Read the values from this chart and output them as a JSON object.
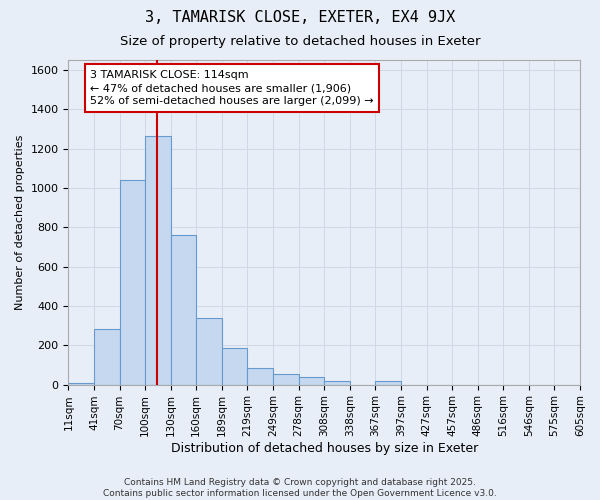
{
  "title1": "3, TAMARISK CLOSE, EXETER, EX4 9JX",
  "title2": "Size of property relative to detached houses in Exeter",
  "xlabel": "Distribution of detached houses by size in Exeter",
  "ylabel": "Number of detached properties",
  "bin_labels": [
    "11sqm",
    "41sqm",
    "70sqm",
    "100sqm",
    "130sqm",
    "160sqm",
    "189sqm",
    "219sqm",
    "249sqm",
    "278sqm",
    "308sqm",
    "338sqm",
    "367sqm",
    "397sqm",
    "427sqm",
    "457sqm",
    "486sqm",
    "516sqm",
    "546sqm",
    "575sqm",
    "605sqm"
  ],
  "bar_heights": [
    10,
    285,
    1040,
    1265,
    760,
    340,
    185,
    85,
    55,
    40,
    20,
    0,
    20,
    0,
    0,
    0,
    0,
    0,
    0,
    0
  ],
  "bar_color": "#c5d8f0",
  "bar_edge_color": "#6699cc",
  "grid_color": "#d0d8e8",
  "background_color": "#e8eef8",
  "red_line_color": "#cc0000",
  "annotation_text": "3 TAMARISK CLOSE: 114sqm\n← 47% of detached houses are smaller (1,906)\n52% of semi-detached houses are larger (2,099) →",
  "annotation_box_color": "#ffffff",
  "annotation_box_edge": "#cc0000",
  "ylim": [
    0,
    1650
  ],
  "yticks": [
    0,
    200,
    400,
    600,
    800,
    1000,
    1200,
    1400,
    1600
  ],
  "footer1": "Contains HM Land Registry data © Crown copyright and database right 2025.",
  "footer2": "Contains public sector information licensed under the Open Government Licence v3.0."
}
